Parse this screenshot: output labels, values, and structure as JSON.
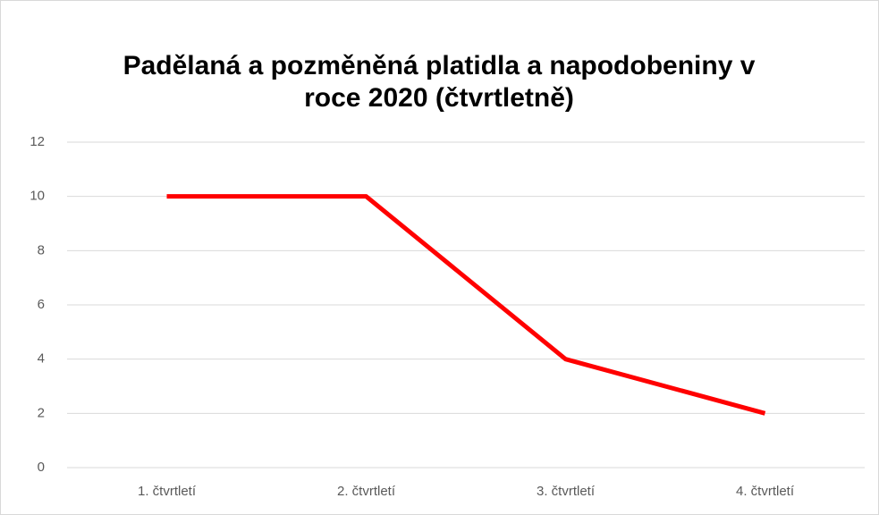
{
  "chart_data": {
    "type": "line",
    "title": "Padělaná a pozměněná platidla a napodobeniny v roce 2020 (čtvrtletně)",
    "categories": [
      "1. čtvrtletí",
      "2. čtvrtletí",
      "3. čtvrtletí",
      "4. čtvrtletí"
    ],
    "values": [
      10,
      10,
      4,
      2
    ],
    "color": "#ff0000",
    "ylim": [
      0,
      12
    ],
    "yticks": [
      0,
      2,
      4,
      6,
      8,
      10,
      12
    ],
    "grid": true
  }
}
